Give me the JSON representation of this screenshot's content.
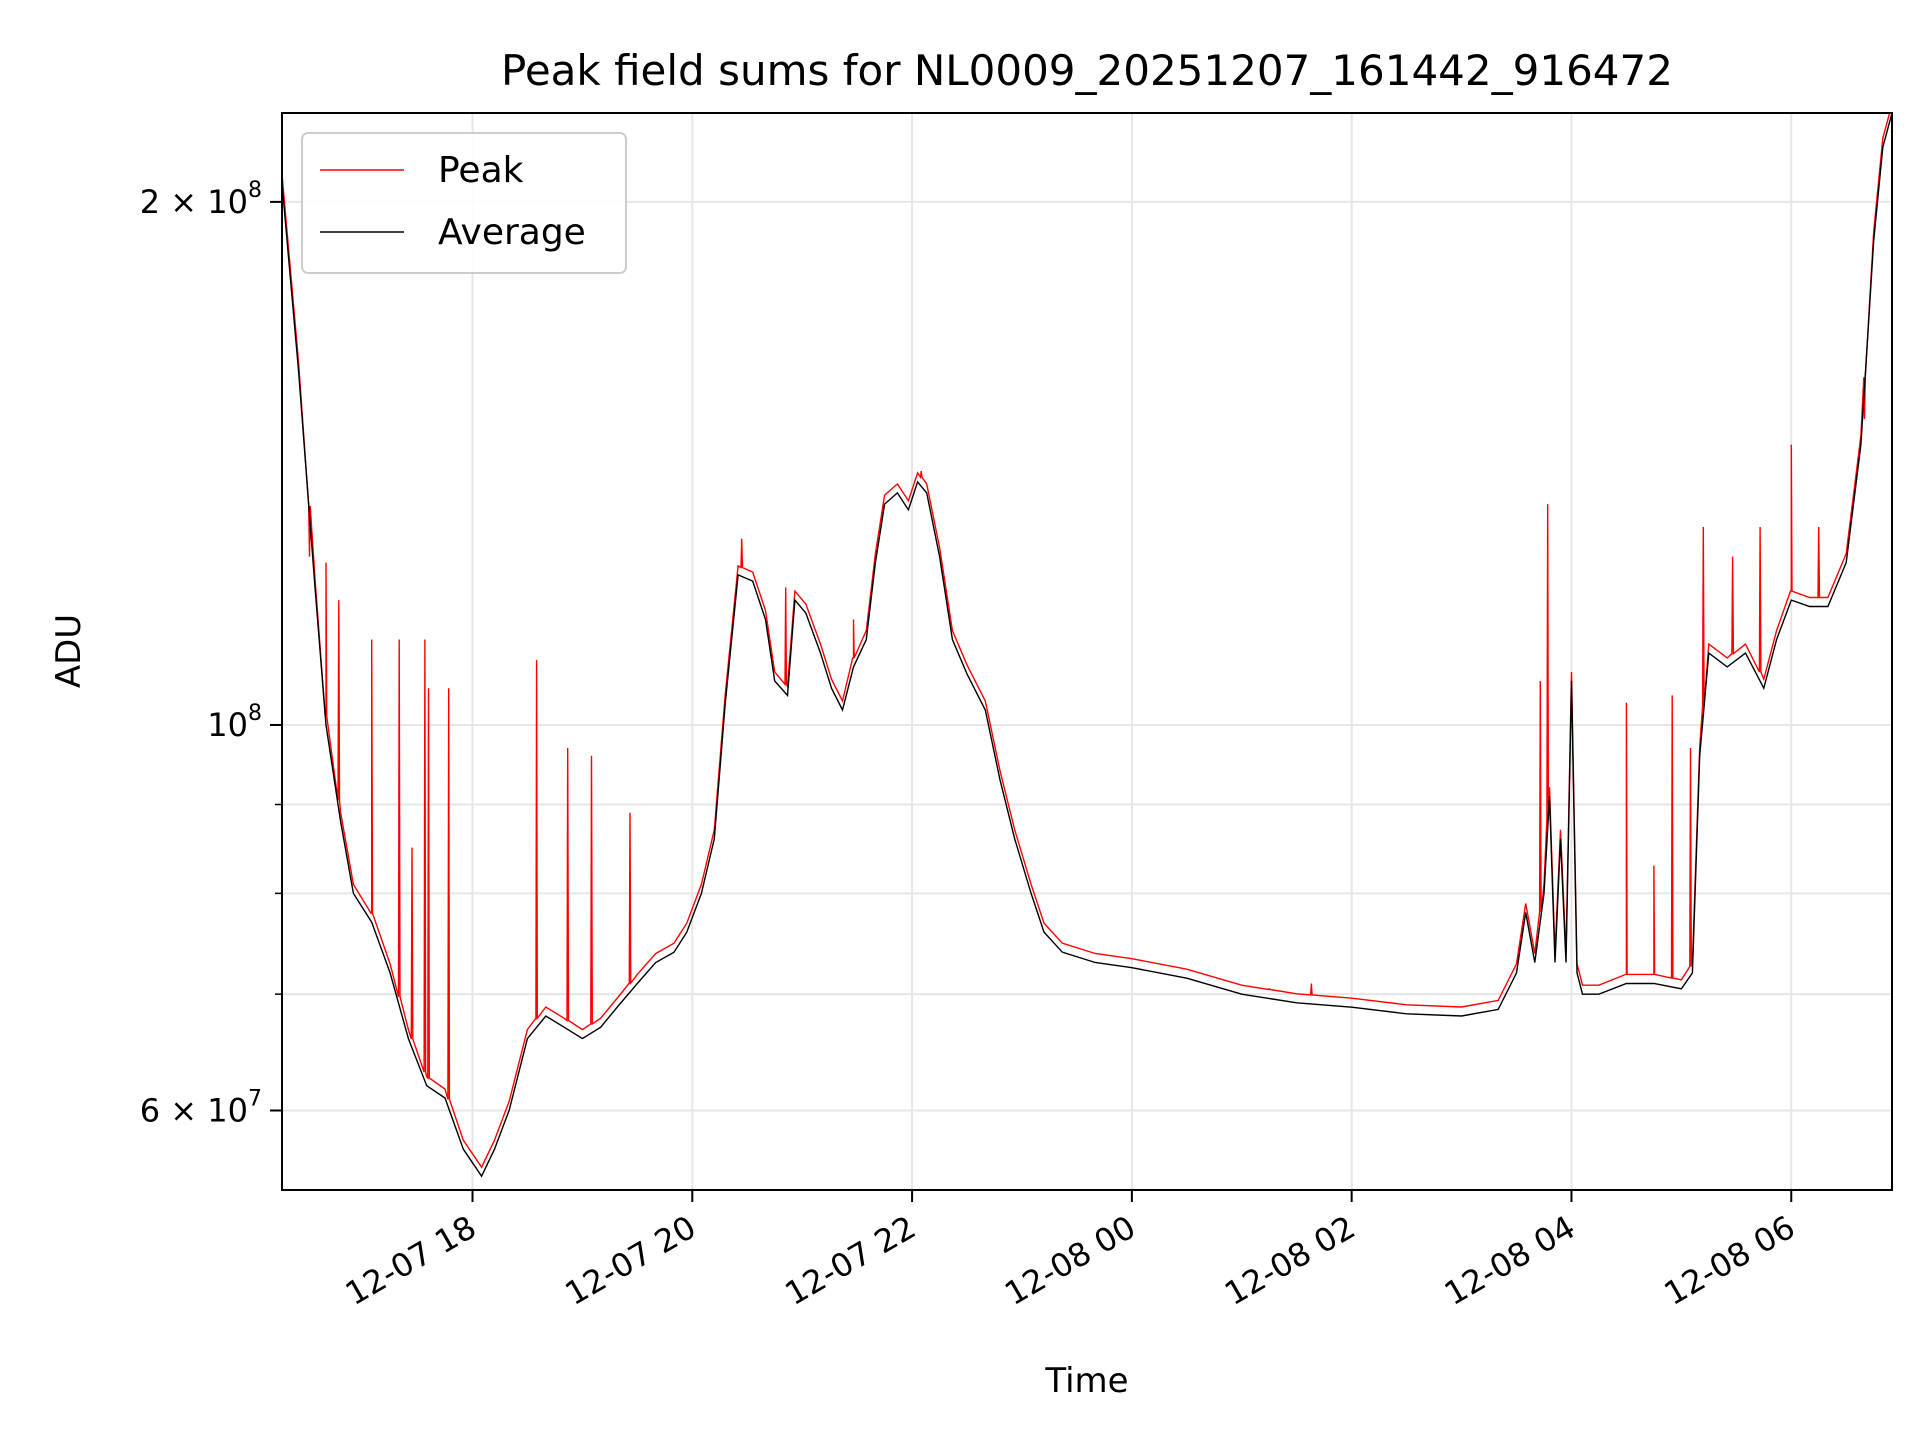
{
  "chart_data": {
    "type": "line",
    "title": "Peak field sums for NL0009_20251207_161442_916472",
    "xlabel": "Time",
    "ylabel": "ADU",
    "x_range": [
      "2025-12-07 16:16",
      "2025-12-08 06:55"
    ],
    "ylim": [
      54000000,
      225000000
    ],
    "y_scale": "log",
    "grid": true,
    "legend_position": "top-left",
    "x_ticks": [
      {
        "value": "2025-12-07 18:00",
        "label": "12-07 18"
      },
      {
        "value": "2025-12-07 20:00",
        "label": "12-07 20"
      },
      {
        "value": "2025-12-07 22:00",
        "label": "12-07 22"
      },
      {
        "value": "2025-12-08 00:00",
        "label": "12-08 00"
      },
      {
        "value": "2025-12-08 02:00",
        "label": "12-08 02"
      },
      {
        "value": "2025-12-08 04:00",
        "label": "12-08 04"
      },
      {
        "value": "2025-12-08 06:00",
        "label": "12-08 06"
      }
    ],
    "y_major_ticks": [
      {
        "value": 60000000,
        "label": "6 × 10",
        "exp": "7"
      },
      {
        "value": 100000000,
        "label": "10",
        "exp": "8"
      },
      {
        "value": 200000000,
        "label": "2 × 10",
        "exp": "8"
      }
    ],
    "y_minor_ticks": [
      70000000,
      80000000,
      90000000
    ],
    "series": [
      {
        "name": "Average",
        "color": "#000000",
        "points": [
          [
            "2025-12-07 16:16",
            205000000
          ],
          [
            "2025-12-07 16:25",
            160000000
          ],
          [
            "2025-12-07 16:34",
            120000000
          ],
          [
            "2025-12-07 16:40",
            100000000
          ],
          [
            "2025-12-07 16:48",
            88000000
          ],
          [
            "2025-12-07 16:55",
            80000000
          ],
          [
            "2025-12-07 17:05",
            77000000
          ],
          [
            "2025-12-07 17:15",
            72000000
          ],
          [
            "2025-12-07 17:25",
            66000000
          ],
          [
            "2025-12-07 17:35",
            62000000
          ],
          [
            "2025-12-07 17:45",
            61000000
          ],
          [
            "2025-12-07 17:55",
            57000000
          ],
          [
            "2025-12-07 18:05",
            55000000
          ],
          [
            "2025-12-07 18:12",
            57000000
          ],
          [
            "2025-12-07 18:20",
            60000000
          ],
          [
            "2025-12-07 18:30",
            66000000
          ],
          [
            "2025-12-07 18:40",
            68000000
          ],
          [
            "2025-12-07 18:50",
            67000000
          ],
          [
            "2025-12-07 19:00",
            66000000
          ],
          [
            "2025-12-07 19:10",
            67000000
          ],
          [
            "2025-12-07 19:20",
            69000000
          ],
          [
            "2025-12-07 19:30",
            71000000
          ],
          [
            "2025-12-07 19:40",
            73000000
          ],
          [
            "2025-12-07 19:50",
            74000000
          ],
          [
            "2025-12-07 19:57",
            76000000
          ],
          [
            "2025-12-07 20:05",
            80000000
          ],
          [
            "2025-12-07 20:12",
            86000000
          ],
          [
            "2025-12-07 20:18",
            103000000
          ],
          [
            "2025-12-07 20:25",
            122000000
          ],
          [
            "2025-12-07 20:33",
            121000000
          ],
          [
            "2025-12-07 20:40",
            115000000
          ],
          [
            "2025-12-07 20:45",
            106000000
          ],
          [
            "2025-12-07 20:52",
            104000000
          ],
          [
            "2025-12-07 20:56",
            118000000
          ],
          [
            "2025-12-07 21:02",
            116000000
          ],
          [
            "2025-12-07 21:10",
            110000000
          ],
          [
            "2025-12-07 21:16",
            105000000
          ],
          [
            "2025-12-07 21:22",
            102000000
          ],
          [
            "2025-12-07 21:28",
            108000000
          ],
          [
            "2025-12-07 21:35",
            112000000
          ],
          [
            "2025-12-07 21:40",
            124000000
          ],
          [
            "2025-12-07 21:45",
            134000000
          ],
          [
            "2025-12-07 21:52",
            136000000
          ],
          [
            "2025-12-07 21:58",
            133000000
          ],
          [
            "2025-12-07 22:03",
            138000000
          ],
          [
            "2025-12-07 22:08",
            136000000
          ],
          [
            "2025-12-07 22:15",
            125000000
          ],
          [
            "2025-12-07 22:22",
            112000000
          ],
          [
            "2025-12-07 22:30",
            107000000
          ],
          [
            "2025-12-07 22:40",
            102000000
          ],
          [
            "2025-12-07 22:48",
            93000000
          ],
          [
            "2025-12-07 22:56",
            86000000
          ],
          [
            "2025-12-07 23:05",
            80000000
          ],
          [
            "2025-12-07 23:12",
            76000000
          ],
          [
            "2025-12-07 23:22",
            74000000
          ],
          [
            "2025-12-07 23:40",
            73000000
          ],
          [
            "2025-12-08 00:00",
            72500000
          ],
          [
            "2025-12-08 00:30",
            71500000
          ],
          [
            "2025-12-08 01:00",
            70000000
          ],
          [
            "2025-12-08 01:30",
            69200000
          ],
          [
            "2025-12-08 02:00",
            68800000
          ],
          [
            "2025-12-08 02:30",
            68200000
          ],
          [
            "2025-12-08 03:00",
            68000000
          ],
          [
            "2025-12-08 03:20",
            68600000
          ],
          [
            "2025-12-08 03:30",
            72000000
          ],
          [
            "2025-12-08 03:35",
            78000000
          ],
          [
            "2025-12-08 03:40",
            73000000
          ],
          [
            "2025-12-08 03:45",
            80000000
          ],
          [
            "2025-12-08 03:48",
            91000000
          ],
          [
            "2025-12-08 03:51",
            73000000
          ],
          [
            "2025-12-08 03:54",
            86000000
          ],
          [
            "2025-12-08 03:57",
            73000000
          ],
          [
            "2025-12-08 04:00",
            106000000
          ],
          [
            "2025-12-08 04:03",
            72000000
          ],
          [
            "2025-12-08 04:06",
            70000000
          ],
          [
            "2025-12-08 04:15",
            70000000
          ],
          [
            "2025-12-08 04:30",
            71000000
          ],
          [
            "2025-12-08 04:45",
            71000000
          ],
          [
            "2025-12-08 05:00",
            70500000
          ],
          [
            "2025-12-08 05:06",
            72000000
          ],
          [
            "2025-12-08 05:10",
            96000000
          ],
          [
            "2025-12-08 05:15",
            110000000
          ],
          [
            "2025-12-08 05:25",
            108000000
          ],
          [
            "2025-12-08 05:35",
            110000000
          ],
          [
            "2025-12-08 05:45",
            105000000
          ],
          [
            "2025-12-08 05:52",
            112000000
          ],
          [
            "2025-12-08 06:00",
            118000000
          ],
          [
            "2025-12-08 06:10",
            117000000
          ],
          [
            "2025-12-08 06:20",
            117000000
          ],
          [
            "2025-12-08 06:30",
            124000000
          ],
          [
            "2025-12-08 06:38",
            145000000
          ],
          [
            "2025-12-08 06:45",
            190000000
          ],
          [
            "2025-12-08 06:50",
            215000000
          ],
          [
            "2025-12-08 06:55",
            225000000
          ]
        ]
      },
      {
        "name": "Peak",
        "color": "#ff0000",
        "spikes": [
          [
            "2025-12-07 16:31",
            125000000
          ],
          [
            "2025-12-07 16:40",
            124000000
          ],
          [
            "2025-12-07 16:47",
            118000000
          ],
          [
            "2025-12-07 17:05",
            112000000
          ],
          [
            "2025-12-07 17:20",
            112000000
          ],
          [
            "2025-12-07 17:27",
            85000000
          ],
          [
            "2025-12-07 17:34",
            112000000
          ],
          [
            "2025-12-07 17:36",
            105000000
          ],
          [
            "2025-12-07 17:47",
            105000000
          ],
          [
            "2025-12-07 18:35",
            109000000
          ],
          [
            "2025-12-07 18:52",
            97000000
          ],
          [
            "2025-12-07 19:05",
            96000000
          ],
          [
            "2025-12-07 19:26",
            89000000
          ],
          [
            "2025-12-07 20:27",
            128000000
          ],
          [
            "2025-12-07 20:51",
            120000000
          ],
          [
            "2025-12-07 21:28",
            115000000
          ],
          [
            "2025-12-07 22:05",
            140000000
          ],
          [
            "2025-12-08 01:15",
            70500000
          ],
          [
            "2025-12-08 01:38",
            71000000
          ],
          [
            "2025-12-08 03:43",
            106000000
          ],
          [
            "2025-12-08 03:47",
            134000000
          ],
          [
            "2025-12-08 04:30",
            103000000
          ],
          [
            "2025-12-08 04:45",
            83000000
          ],
          [
            "2025-12-08 04:55",
            104000000
          ],
          [
            "2025-12-08 05:05",
            97000000
          ],
          [
            "2025-12-08 05:12",
            130000000
          ],
          [
            "2025-12-08 05:28",
            125000000
          ],
          [
            "2025-12-08 05:43",
            130000000
          ],
          [
            "2025-12-08 06:00",
            145000000
          ],
          [
            "2025-12-08 06:15",
            130000000
          ],
          [
            "2025-12-08 06:40",
            150000000
          ]
        ]
      }
    ]
  }
}
